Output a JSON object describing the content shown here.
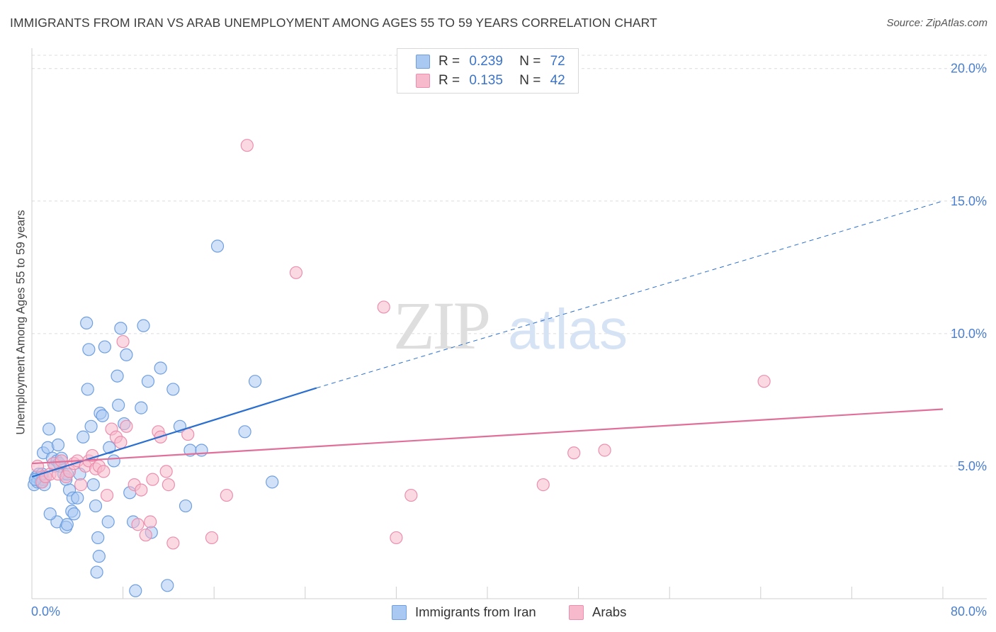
{
  "title": "IMMIGRANTS FROM IRAN VS ARAB UNEMPLOYMENT AMONG AGES 55 TO 59 YEARS CORRELATION CHART",
  "source": "Source: ZipAtlas.com",
  "watermark": {
    "zip": "ZIP",
    "atlas": "atlas"
  },
  "legend": {
    "rows": [
      {
        "r_label": "R =",
        "r_value": "0.239",
        "n_label": "N =",
        "n_value": "72"
      },
      {
        "r_label": "R =",
        "r_value": "0.135",
        "n_label": "N =",
        "n_value": "42"
      }
    ]
  },
  "bottom_legend": [
    "Immigrants from Iran",
    "Arabs"
  ],
  "colors": {
    "iran_fill": "#a9c8f2",
    "iran_stroke": "#6f9fe0",
    "iran_line": "#2a6fd0",
    "arab_fill": "#f7b9cc",
    "arab_stroke": "#eb8fae",
    "arab_line": "#e0709a",
    "grid": "#dcdcdc",
    "tick_text": "#4a7fd0"
  },
  "chart_data": {
    "type": "scatter",
    "title": "IMMIGRANTS FROM IRAN VS ARAB UNEMPLOYMENT AMONG AGES 55 TO 59 YEARS CORRELATION CHART",
    "xlabel": "",
    "ylabel": "Unemployment Among Ages 55 to 59 years",
    "xlim": [
      0,
      80
    ],
    "ylim": [
      0,
      20.5
    ],
    "x_tick_labels": [
      "0.0%",
      "80.0%"
    ],
    "y_ticks": [
      5,
      10,
      15,
      20
    ],
    "y_tick_labels": [
      "5.0%",
      "10.0%",
      "15.0%",
      "20.0%"
    ],
    "series": [
      {
        "name": "Immigrants from Iran",
        "R": 0.239,
        "N": 72,
        "trend": {
          "x0": 0,
          "y0": 4.6,
          "x1": 25,
          "y1": 7.95,
          "dashed_to_x": 80,
          "dashed_to_y": 15.0
        },
        "points": [
          [
            0.2,
            4.3
          ],
          [
            0.4,
            4.6
          ],
          [
            0.5,
            4.4
          ],
          [
            0.6,
            4.7
          ],
          [
            0.8,
            4.4
          ],
          [
            1.0,
            4.5
          ],
          [
            1.1,
            4.3
          ],
          [
            1.2,
            4.6
          ],
          [
            0.9,
            4.7
          ],
          [
            0.3,
            4.5
          ],
          [
            1.0,
            5.5
          ],
          [
            1.5,
            6.4
          ],
          [
            1.4,
            5.7
          ],
          [
            1.8,
            5.3
          ],
          [
            2.0,
            5.0
          ],
          [
            2.2,
            5.2
          ],
          [
            2.3,
            5.8
          ],
          [
            2.5,
            5.0
          ],
          [
            2.4,
            5.1
          ],
          [
            2.6,
            5.3
          ],
          [
            2.8,
            4.7
          ],
          [
            3.0,
            4.5
          ],
          [
            3.1,
            4.7
          ],
          [
            3.3,
            4.1
          ],
          [
            3.6,
            3.8
          ],
          [
            3.5,
            3.3
          ],
          [
            3.7,
            3.2
          ],
          [
            4.0,
            3.8
          ],
          [
            2.2,
            2.9
          ],
          [
            1.6,
            3.2
          ],
          [
            3.0,
            2.7
          ],
          [
            3.1,
            2.8
          ],
          [
            4.2,
            4.7
          ],
          [
            4.5,
            6.1
          ],
          [
            4.8,
            10.4
          ],
          [
            4.9,
            7.9
          ],
          [
            5.0,
            9.4
          ],
          [
            5.2,
            6.5
          ],
          [
            5.4,
            4.3
          ],
          [
            5.6,
            3.5
          ],
          [
            5.8,
            2.3
          ],
          [
            5.9,
            1.6
          ],
          [
            5.7,
            1.0
          ],
          [
            6.0,
            7.0
          ],
          [
            6.2,
            6.9
          ],
          [
            6.4,
            9.5
          ],
          [
            6.7,
            2.9
          ],
          [
            6.8,
            5.7
          ],
          [
            7.2,
            5.2
          ],
          [
            7.5,
            8.4
          ],
          [
            7.6,
            7.3
          ],
          [
            7.8,
            10.2
          ],
          [
            8.1,
            6.6
          ],
          [
            8.3,
            9.2
          ],
          [
            8.6,
            4.0
          ],
          [
            8.9,
            2.9
          ],
          [
            9.1,
            0.3
          ],
          [
            9.6,
            7.2
          ],
          [
            9.8,
            10.3
          ],
          [
            10.2,
            8.2
          ],
          [
            10.5,
            2.5
          ],
          [
            11.3,
            8.7
          ],
          [
            11.9,
            0.5
          ],
          [
            12.4,
            7.9
          ],
          [
            13.0,
            6.5
          ],
          [
            13.5,
            3.5
          ],
          [
            13.9,
            5.6
          ],
          [
            14.9,
            5.6
          ],
          [
            16.3,
            13.3
          ],
          [
            18.7,
            6.3
          ],
          [
            19.6,
            8.2
          ],
          [
            21.1,
            4.4
          ]
        ]
      },
      {
        "name": "Arabs",
        "R": 0.135,
        "N": 42,
        "trend": {
          "x0": 0,
          "y0": 5.1,
          "x1": 80,
          "y1": 7.15
        },
        "points": [
          [
            0.5,
            5.0
          ],
          [
            0.9,
            4.4
          ],
          [
            1.2,
            4.6
          ],
          [
            1.6,
            4.7
          ],
          [
            1.9,
            5.1
          ],
          [
            2.3,
            4.7
          ],
          [
            2.6,
            5.2
          ],
          [
            3.0,
            4.6
          ],
          [
            3.3,
            4.8
          ],
          [
            3.7,
            5.1
          ],
          [
            4.0,
            5.2
          ],
          [
            4.3,
            4.3
          ],
          [
            4.7,
            5.0
          ],
          [
            5.0,
            5.2
          ],
          [
            5.3,
            5.4
          ],
          [
            5.6,
            4.9
          ],
          [
            5.9,
            5.0
          ],
          [
            6.3,
            4.8
          ],
          [
            6.6,
            3.9
          ],
          [
            7.0,
            6.4
          ],
          [
            7.4,
            6.1
          ],
          [
            7.8,
            5.9
          ],
          [
            8.0,
            9.7
          ],
          [
            8.3,
            6.5
          ],
          [
            9.0,
            4.3
          ],
          [
            9.3,
            2.8
          ],
          [
            9.6,
            4.1
          ],
          [
            10.0,
            2.4
          ],
          [
            10.4,
            2.9
          ],
          [
            10.6,
            4.5
          ],
          [
            11.1,
            6.3
          ],
          [
            11.3,
            6.1
          ],
          [
            11.8,
            4.8
          ],
          [
            12.0,
            4.3
          ],
          [
            12.4,
            2.1
          ],
          [
            13.7,
            6.2
          ],
          [
            15.8,
            2.3
          ],
          [
            17.1,
            3.9
          ],
          [
            18.9,
            17.1
          ],
          [
            23.2,
            12.3
          ],
          [
            30.9,
            11.0
          ],
          [
            32.0,
            2.3
          ]
        ],
        "outliers_right": [
          [
            33.3,
            3.9
          ],
          [
            44.9,
            4.3
          ],
          [
            47.6,
            5.5
          ],
          [
            50.3,
            5.6
          ],
          [
            64.3,
            8.2
          ]
        ]
      }
    ]
  }
}
